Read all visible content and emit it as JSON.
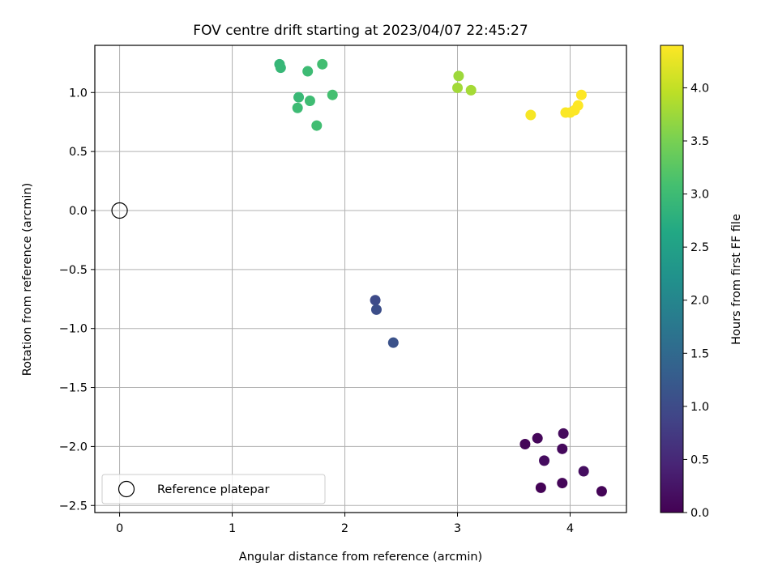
{
  "chart_data": {
    "type": "scatter",
    "title": "FOV centre drift starting at 2023/04/07 22:45:27",
    "xlabel": "Angular distance from reference (arcmin)",
    "ylabel": "Rotation from reference (arcmin)",
    "xlim": [
      -0.22,
      4.5
    ],
    "ylim": [
      -2.56,
      1.4
    ],
    "xticks": [
      0,
      1,
      2,
      3,
      4
    ],
    "xtick_labels": [
      "0",
      "1",
      "2",
      "3",
      "4"
    ],
    "yticks": [
      -2.5,
      -2.0,
      -1.5,
      -1.0,
      -0.5,
      0.0,
      0.5,
      1.0
    ],
    "ytick_labels": [
      "−2.5",
      "−2.0",
      "−1.5",
      "−1.0",
      "−0.5",
      "0.0",
      "0.5",
      "1.0"
    ],
    "grid": true,
    "legend": {
      "label": "Reference platepar",
      "placement": "lower-left"
    },
    "reference_point": {
      "x": 0.0,
      "y": 0.0
    },
    "colormap": "viridis",
    "colorbar": {
      "label": "Hours from first FF file",
      "range": [
        0.0,
        4.4
      ],
      "ticks": [
        0.0,
        0.5,
        1.0,
        1.5,
        2.0,
        2.5,
        3.0,
        3.5,
        4.0
      ],
      "tick_labels": [
        "0.0",
        "0.5",
        "1.0",
        "1.5",
        "2.0",
        "2.5",
        "3.0",
        "3.5",
        "4.0"
      ]
    },
    "points": [
      {
        "x": 3.6,
        "y": -1.98,
        "c": 0.05
      },
      {
        "x": 3.71,
        "y": -1.93,
        "c": 0.08
      },
      {
        "x": 3.94,
        "y": -1.89,
        "c": 0.12
      },
      {
        "x": 3.93,
        "y": -2.02,
        "c": 0.1
      },
      {
        "x": 3.77,
        "y": -2.12,
        "c": 0.14
      },
      {
        "x": 4.12,
        "y": -2.21,
        "c": 0.16
      },
      {
        "x": 3.74,
        "y": -2.35,
        "c": 0.02
      },
      {
        "x": 3.93,
        "y": -2.31,
        "c": 0.06
      },
      {
        "x": 4.28,
        "y": -2.38,
        "c": 0.04
      },
      {
        "x": 2.27,
        "y": -0.76,
        "c": 1.0
      },
      {
        "x": 2.28,
        "y": -0.84,
        "c": 1.05
      },
      {
        "x": 2.43,
        "y": -1.12,
        "c": 1.1
      },
      {
        "x": 1.42,
        "y": 1.24,
        "c": 2.9
      },
      {
        "x": 1.43,
        "y": 1.21,
        "c": 2.92
      },
      {
        "x": 1.67,
        "y": 1.18,
        "c": 3.0
      },
      {
        "x": 1.8,
        "y": 1.24,
        "c": 3.05
      },
      {
        "x": 1.59,
        "y": 0.96,
        "c": 2.95
      },
      {
        "x": 1.58,
        "y": 0.87,
        "c": 3.0
      },
      {
        "x": 1.69,
        "y": 0.93,
        "c": 3.02
      },
      {
        "x": 1.89,
        "y": 0.98,
        "c": 3.08
      },
      {
        "x": 1.75,
        "y": 0.72,
        "c": 3.04
      },
      {
        "x": 3.01,
        "y": 1.14,
        "c": 3.75
      },
      {
        "x": 3.0,
        "y": 1.04,
        "c": 3.78
      },
      {
        "x": 3.12,
        "y": 1.02,
        "c": 3.8
      },
      {
        "x": 3.65,
        "y": 0.81,
        "c": 4.35
      },
      {
        "x": 3.96,
        "y": 0.83,
        "c": 4.38
      },
      {
        "x": 4.0,
        "y": 0.83,
        "c": 4.38
      },
      {
        "x": 4.04,
        "y": 0.85,
        "c": 4.39
      },
      {
        "x": 4.07,
        "y": 0.89,
        "c": 4.4
      },
      {
        "x": 4.1,
        "y": 0.98,
        "c": 4.4
      }
    ]
  }
}
